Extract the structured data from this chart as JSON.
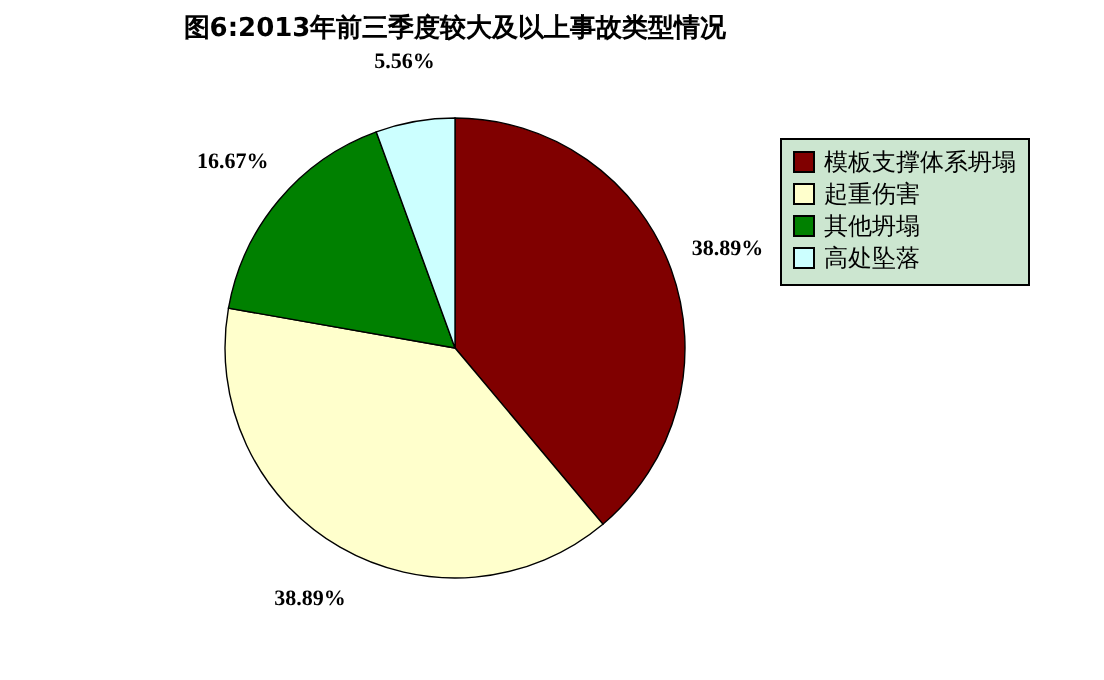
{
  "chart_data": {
    "type": "pie",
    "title": "图6:2013年前三季度较大及以上事故类型情况",
    "categories": [
      "模板支撑体系坍塌",
      "起重伤害",
      "其他坍塌",
      "高处坠落"
    ],
    "values": [
      38.89,
      38.89,
      16.67,
      5.56
    ],
    "colors": [
      "#800000",
      "#ffffcc",
      "#008000",
      "#ccffff"
    ],
    "value_labels": [
      "38.89%",
      "38.89%",
      "16.67%",
      "5.56%"
    ],
    "legend": "right"
  }
}
